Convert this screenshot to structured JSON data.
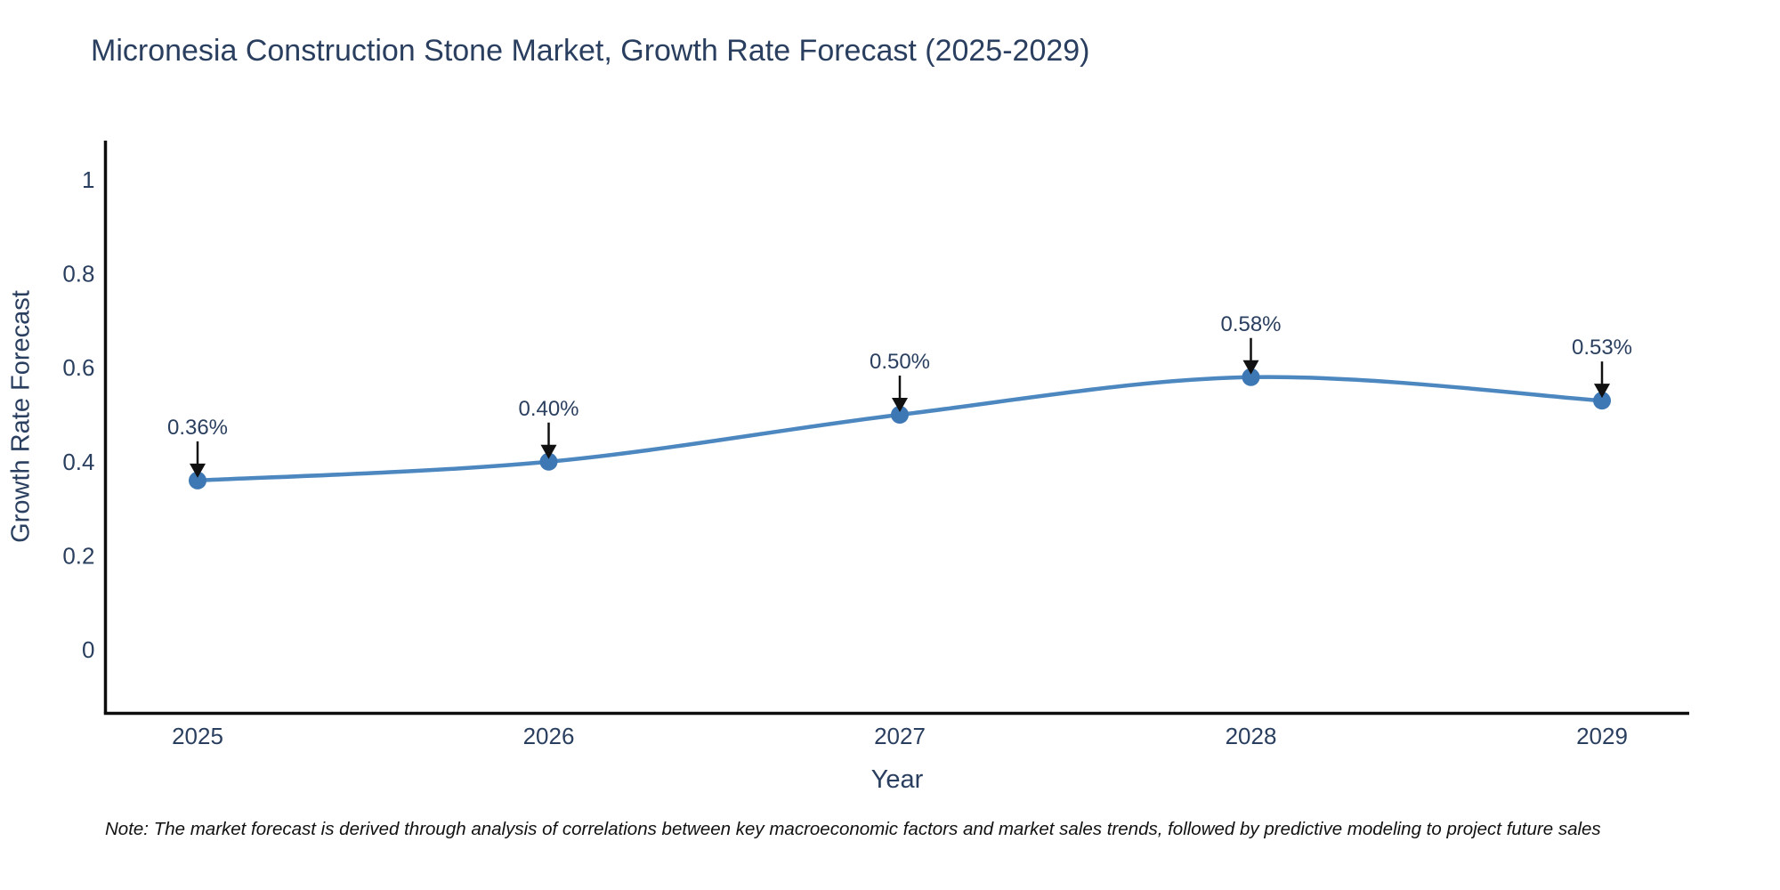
{
  "title": "Micronesia Construction Stone Market, Growth Rate Forecast (2025-2029)",
  "note": "Note: The market forecast is derived through analysis of correlations between key macroeconomic factors and market sales trends, followed by predictive modeling to project future sales",
  "colors": {
    "line": "#4c87c0",
    "marker": "#3d78b5",
    "axis": "#0d0d0d",
    "text": "#2a3f5f",
    "arrow": "#111111"
  },
  "chart_data": {
    "type": "line",
    "title": "Micronesia Construction Stone Market, Growth Rate Forecast (2025-2029)",
    "xlabel": "Year",
    "ylabel": "Growth Rate Forecast",
    "categories": [
      "2025",
      "2026",
      "2027",
      "2028",
      "2029"
    ],
    "series": [
      {
        "name": "Growth Rate Forecast",
        "values": [
          0.36,
          0.4,
          0.5,
          0.58,
          0.53
        ]
      }
    ],
    "point_labels": [
      "0.36%",
      "0.40%",
      "0.50%",
      "0.58%",
      "0.53%"
    ],
    "ytick_labels": [
      "0",
      "0.2",
      "0.4",
      "0.6",
      "0.8",
      "1"
    ],
    "ytick_values": [
      0,
      0.2,
      0.4,
      0.6,
      0.8,
      1
    ],
    "ylim": [
      -0.135,
      1.085
    ],
    "grid": false,
    "legend": "none",
    "line_shape": "spline",
    "annotation_style": "down-arrow"
  }
}
